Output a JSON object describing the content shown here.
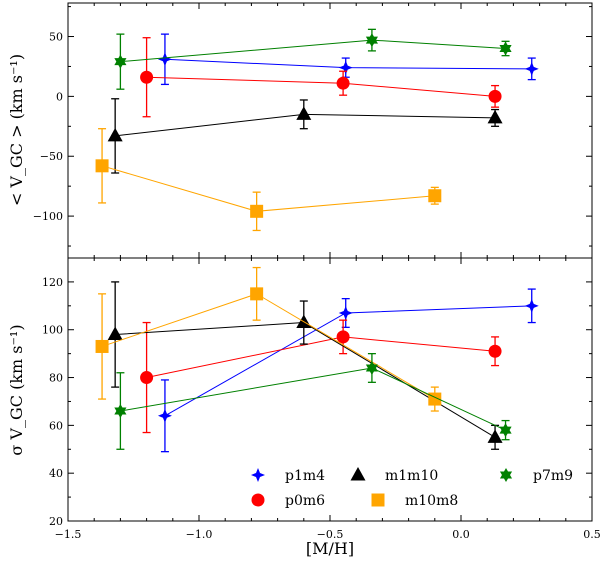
{
  "chart_data": {
    "type": "scatter",
    "xlabel": "[M/H]",
    "xlim": [
      -1.5,
      0.5
    ],
    "xticks": [
      -1.5,
      -1.0,
      -0.5,
      0.0,
      0.5
    ],
    "xtick_labels": [
      "−1.5",
      "−1.0",
      "−0.5",
      "0.0",
      "0.5"
    ],
    "panels": [
      {
        "id": "mean",
        "ylabel": "< V_GC > (km s⁻¹)",
        "ylim": [
          -135,
          78
        ],
        "yticks": [
          -100,
          -50,
          0,
          50
        ],
        "ytick_labels": [
          "−100",
          "−50",
          "0",
          "50"
        ]
      },
      {
        "id": "sigma",
        "ylabel": "σ V_GC (km s⁻¹)",
        "ylim": [
          20,
          130
        ],
        "yticks": [
          20,
          40,
          60,
          80,
          100,
          120
        ],
        "ytick_labels": [
          "20",
          "40",
          "60",
          "80",
          "100",
          "120"
        ]
      }
    ],
    "series": [
      {
        "name": "p1m4",
        "color": "#0000ff",
        "marker": "diamond",
        "x": [
          -1.13,
          -0.44,
          0.27
        ],
        "mean": [
          31,
          24,
          23
        ],
        "mean_err": [
          21,
          8,
          9
        ],
        "sigma": [
          64,
          107,
          110
        ],
        "sigma_err": [
          15,
          6,
          7
        ]
      },
      {
        "name": "p0m6",
        "color": "#ff0000",
        "marker": "circle",
        "x": [
          -1.2,
          -0.45,
          0.13
        ],
        "mean": [
          16,
          11,
          0
        ],
        "mean_err": [
          33,
          10,
          9
        ],
        "sigma": [
          80,
          97,
          91
        ],
        "sigma_err": [
          23,
          7,
          6
        ]
      },
      {
        "name": "m1m10",
        "color": "#000000",
        "marker": "triangle",
        "x": [
          -1.32,
          -0.6,
          0.13
        ],
        "mean": [
          -33,
          -15,
          -18
        ],
        "mean_err": [
          31,
          12,
          7
        ],
        "sigma": [
          98,
          103,
          55
        ],
        "sigma_err": [
          22,
          9,
          5
        ]
      },
      {
        "name": "m10m8",
        "color": "#ffa500",
        "marker": "square",
        "x": [
          -1.37,
          -0.78,
          -0.1
        ],
        "mean": [
          -58,
          -96,
          -83
        ],
        "mean_err": [
          31,
          16,
          7
        ],
        "sigma": [
          93,
          115,
          71
        ],
        "sigma_err": [
          22,
          11,
          5
        ]
      },
      {
        "name": "p7m9",
        "color": "#008000",
        "marker": "star",
        "x": [
          -1.3,
          -0.34,
          0.17
        ],
        "mean": [
          29,
          47,
          40
        ],
        "mean_err": [
          23,
          9,
          6
        ],
        "sigma": [
          66,
          84,
          58
        ],
        "sigma_err": [
          16,
          6,
          4
        ]
      }
    ],
    "legend": {
      "position": "lower-right",
      "order": [
        "p1m4",
        "m1m10",
        "p7m9",
        "p0m6",
        "m10m8"
      ]
    }
  }
}
